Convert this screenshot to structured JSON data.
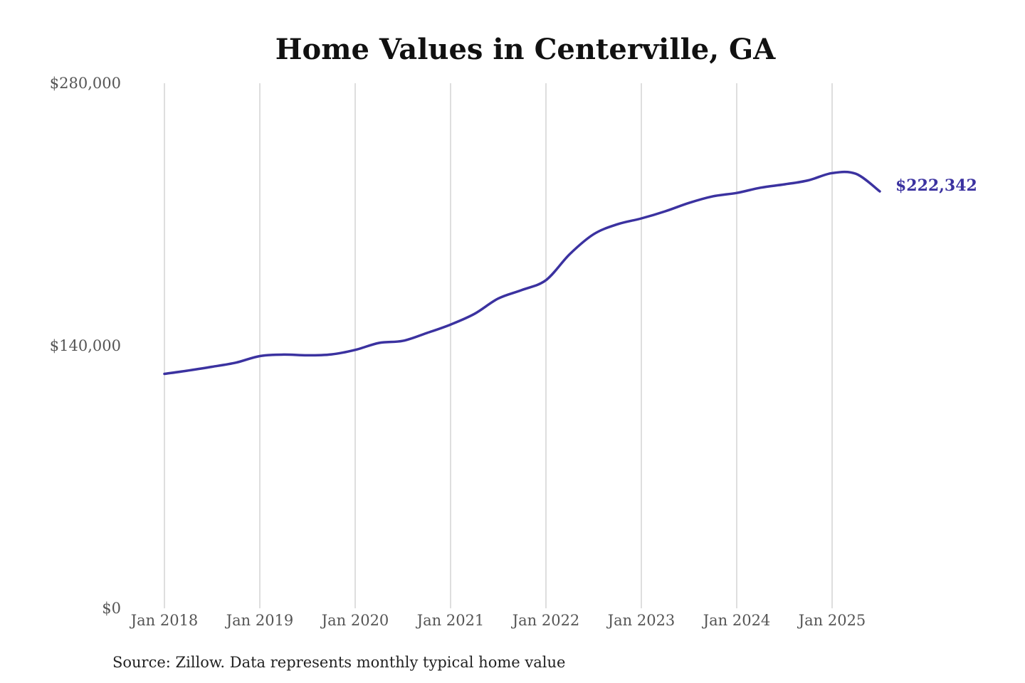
{
  "chart_data": {
    "type": "line",
    "title": "Home Values in Centerville, GA",
    "source_note": "Source: Zillow. Data represents monthly typical home value",
    "y_tick_labels": [
      "$280,000",
      "$140,000",
      "$0"
    ],
    "y_ticks": [
      280000,
      140000,
      0
    ],
    "x_tick_labels": [
      "Jan 2018",
      "Jan 2019",
      "Jan 2020",
      "Jan 2021",
      "Jan 2022",
      "Jan 2023",
      "Jan 2024",
      "Jan 2025"
    ],
    "x_ticks": [
      "2018-01",
      "2019-01",
      "2020-01",
      "2021-01",
      "2022-01",
      "2023-01",
      "2024-01",
      "2025-01"
    ],
    "ylim": [
      0,
      280000
    ],
    "xlim": [
      "2018-01",
      "2025-08"
    ],
    "grid": "vertical",
    "line_color": "#3b32a0",
    "end_label": "$222,342",
    "series": [
      {
        "points": [
          {
            "date": "2018-01",
            "value": 125000
          },
          {
            "date": "2018-04",
            "value": 126800
          },
          {
            "date": "2018-07",
            "value": 128800
          },
          {
            "date": "2018-10",
            "value": 131000
          },
          {
            "date": "2019-01",
            "value": 134500
          },
          {
            "date": "2019-04",
            "value": 135300
          },
          {
            "date": "2019-07",
            "value": 134900
          },
          {
            "date": "2019-10",
            "value": 135400
          },
          {
            "date": "2020-01",
            "value": 137800
          },
          {
            "date": "2020-04",
            "value": 141500
          },
          {
            "date": "2020-07",
            "value": 142600
          },
          {
            "date": "2020-10",
            "value": 146800
          },
          {
            "date": "2021-01",
            "value": 151300
          },
          {
            "date": "2021-04",
            "value": 157000
          },
          {
            "date": "2021-07",
            "value": 165200
          },
          {
            "date": "2021-10",
            "value": 169800
          },
          {
            "date": "2022-01",
            "value": 175000
          },
          {
            "date": "2022-04",
            "value": 188900
          },
          {
            "date": "2022-07",
            "value": 199500
          },
          {
            "date": "2022-10",
            "value": 204800
          },
          {
            "date": "2023-01",
            "value": 207900
          },
          {
            "date": "2023-04",
            "value": 211700
          },
          {
            "date": "2023-07",
            "value": 216200
          },
          {
            "date": "2023-10",
            "value": 219700
          },
          {
            "date": "2024-01",
            "value": 221500
          },
          {
            "date": "2024-04",
            "value": 224300
          },
          {
            "date": "2024-07",
            "value": 226100
          },
          {
            "date": "2024-10",
            "value": 228200
          },
          {
            "date": "2025-01",
            "value": 232100
          },
          {
            "date": "2025-04",
            "value": 231700
          },
          {
            "date": "2025-07",
            "value": 222342
          }
        ]
      }
    ]
  }
}
